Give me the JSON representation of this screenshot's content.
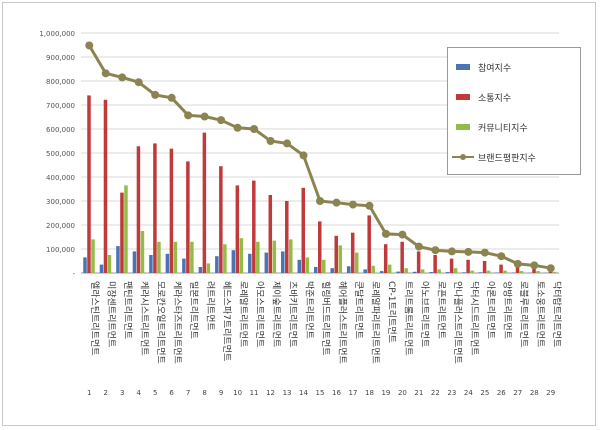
{
  "chart_data": {
    "type": "bar",
    "ylim": [
      0,
      1000000
    ],
    "yticks": [
      "-",
      "100,000",
      "200,000",
      "300,000",
      "400,000",
      "500,000",
      "600,000",
      "700,000",
      "800,000",
      "900,000",
      "1,000,000"
    ],
    "ranks": [
      "1",
      "2",
      "3",
      "4",
      "5",
      "6",
      "7",
      "8",
      "9",
      "10",
      "11",
      "12",
      "13",
      "14",
      "15",
      "16",
      "17",
      "18",
      "19",
      "20",
      "21",
      "22",
      "23",
      "24",
      "25",
      "26",
      "27",
      "28",
      "29"
    ],
    "categories": [
      "엘라스틴트리트먼트",
      "미쟝센트리트먼트",
      "팬틴트리트먼트",
      "케라시스트리트먼트",
      "모로칸오일트리트먼트",
      "케라스타즈트리트먼트",
      "밀본트리트먼트",
      "려트리트먼트",
      "헤드스파7트리트먼트",
      "로레알트리트먼트",
      "아모스트리트먼트",
      "제이숲트리트먼트",
      "츠바키트리트먼트",
      "박준트리트먼트",
      "힐링버드트리트먼트",
      "헤어플러스트리트먼트",
      "쿤달트리트먼트",
      "로레알파리트리트먼트",
      "CP-1트리트먼트",
      "트리트롬트리트먼트",
      "아노브트리트먼트",
      "로픈트리트먼트",
      "안나플러스트리트먼트",
      "닥터시드트리트먼트",
      "아론트리트먼트",
      "앙방트리트먼트",
      "로블루트리트먼트",
      "토소웅트리트먼트",
      "닥터탑트리트먼트"
    ],
    "series": [
      {
        "name": "참여지수",
        "color": "#4a74b3",
        "values": [
          65000,
          35000,
          112000,
          90000,
          75000,
          80000,
          60000,
          25000,
          70000,
          95000,
          80000,
          85000,
          90000,
          55000,
          25000,
          20000,
          28000,
          15000,
          8000,
          6000,
          5000,
          4000,
          4000,
          3000,
          3000,
          2000,
          2000,
          1000,
          1000
        ]
      },
      {
        "name": "소통지수",
        "color": "#c0393b",
        "values": [
          740000,
          722000,
          335000,
          528000,
          540000,
          518000,
          465000,
          585000,
          445000,
          365000,
          385000,
          325000,
          300000,
          355000,
          215000,
          155000,
          168000,
          240000,
          120000,
          130000,
          90000,
          75000,
          60000,
          55000,
          50000,
          35000,
          25000,
          20000,
          15000
        ]
      },
      {
        "name": "커뮤니티지수",
        "color": "#93bb46",
        "values": [
          140000,
          75000,
          365000,
          175000,
          130000,
          130000,
          130000,
          40000,
          120000,
          145000,
          130000,
          135000,
          140000,
          65000,
          55000,
          115000,
          85000,
          30000,
          35000,
          20000,
          15000,
          15000,
          20000,
          10000,
          10000,
          10000,
          8000,
          8000,
          5000
        ]
      },
      {
        "name": "브랜드평판지수",
        "color": "#8b8451",
        "values": [
          948000,
          832000,
          815000,
          795000,
          742000,
          730000,
          657000,
          652000,
          637000,
          605000,
          600000,
          550000,
          540000,
          490000,
          300000,
          293000,
          285000,
          280000,
          163000,
          160000,
          110000,
          95000,
          90000,
          88000,
          85000,
          70000,
          38000,
          32000,
          20000
        ]
      }
    ]
  }
}
